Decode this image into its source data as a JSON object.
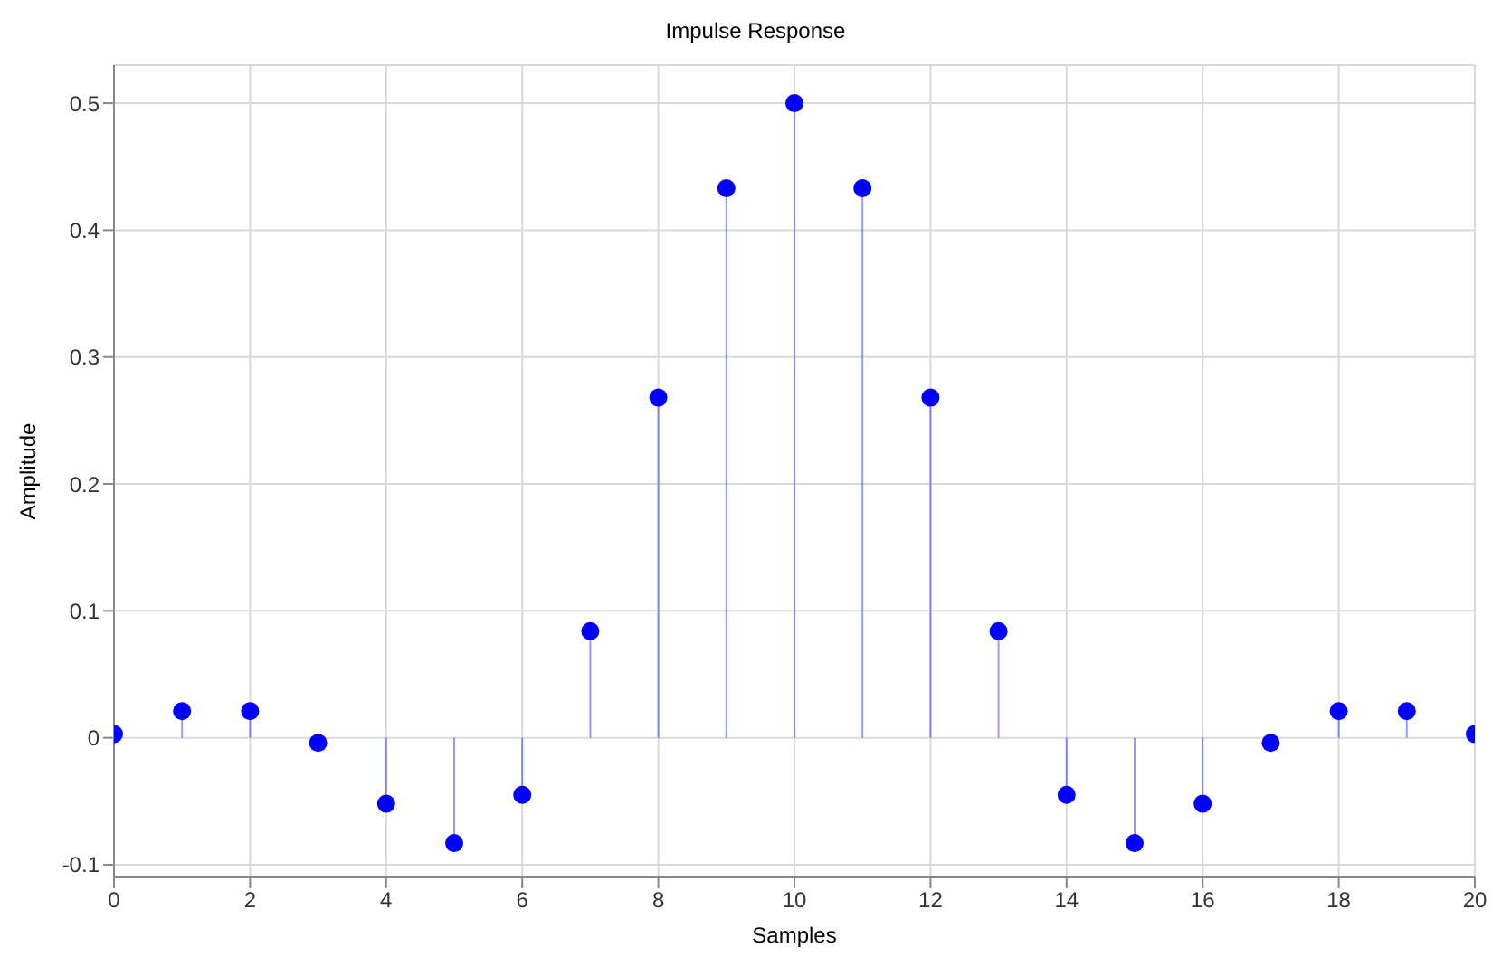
{
  "chart_data": {
    "type": "lollipop",
    "title": "Impulse Response",
    "xlabel": "Samples",
    "ylabel": "Amplitude",
    "x": [
      0,
      1,
      2,
      3,
      4,
      5,
      6,
      7,
      8,
      9,
      10,
      11,
      12,
      13,
      14,
      15,
      16,
      17,
      18,
      19,
      20
    ],
    "series": [
      {
        "color": "#0000ff",
        "values": [
          0.003,
          0.021,
          0.021,
          -0.004,
          -0.052,
          -0.083,
          -0.045,
          0.084,
          0.268,
          0.433,
          0.5,
          0.433,
          0.268,
          0.084,
          -0.045,
          -0.083,
          -0.052,
          -0.004,
          0.021,
          0.021,
          0.003
        ]
      }
    ],
    "xlim": [
      0,
      20
    ],
    "xticks": [
      0,
      2,
      4,
      6,
      8,
      10,
      12,
      14,
      16,
      18,
      20
    ],
    "ylim": [
      -0.11,
      0.53
    ],
    "yticks": [
      -0.1,
      0,
      0.1,
      0.2,
      0.3,
      0.4,
      0.5
    ],
    "grid": true,
    "marker": "circle"
  }
}
